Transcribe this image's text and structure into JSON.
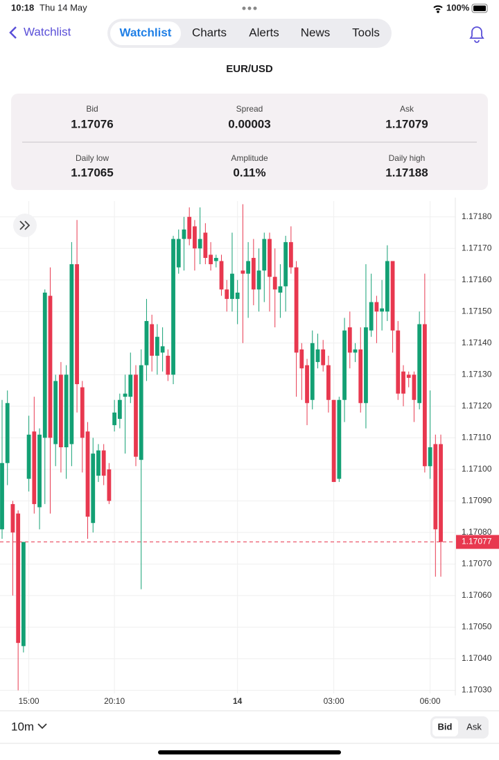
{
  "status_bar": {
    "time": "10:18",
    "date": "Thu 14 May",
    "battery": "100%"
  },
  "nav": {
    "back": "Watchlist",
    "tabs": [
      "Watchlist",
      "Charts",
      "Alerts",
      "News",
      "Tools"
    ]
  },
  "instrument": "EUR/USD",
  "stats": [
    {
      "label": "Bid",
      "value": "1.17076"
    },
    {
      "label": "Spread",
      "value": "0.00003"
    },
    {
      "label": "Ask",
      "value": "1.17079"
    },
    {
      "label": "Daily low",
      "value": "1.17065"
    },
    {
      "label": "Amplitude",
      "value": "0.11%"
    },
    {
      "label": "Daily high",
      "value": "1.17188"
    }
  ],
  "chart_data": {
    "type": "candlestick",
    "categories": [
      null,
      null,
      null,
      null,
      null,
      "15:00",
      null,
      null,
      null,
      null,
      null,
      null,
      null,
      null,
      null,
      null,
      null,
      null,
      null,
      null,
      null,
      "20:10",
      null,
      null,
      null,
      null,
      null,
      null,
      null,
      null,
      null,
      null,
      null,
      null,
      null,
      null,
      null,
      null,
      null,
      null,
      null,
      null,
      null,
      null,
      "14",
      null,
      null,
      null,
      null,
      null,
      null,
      null,
      null,
      null,
      null,
      null,
      null,
      null,
      null,
      null,
      null,
      null,
      "03:00",
      null,
      null,
      null,
      null,
      null,
      null,
      null,
      null,
      null,
      null,
      null,
      null,
      null,
      null,
      null,
      null,
      null,
      "06:00",
      null,
      null
    ],
    "open": [
      1.17081,
      1.17102,
      1.17089,
      1.17086,
      1.17044,
      1.17097,
      1.17112,
      1.17088,
      1.1711,
      1.17155,
      1.17108,
      1.1713,
      1.17107,
      1.17108,
      1.17165,
      1.17126,
      1.17112,
      1.17083,
      1.17098,
      1.17106,
      1.171,
      1.17114,
      1.17116,
      1.17123,
      1.17123,
      1.1713,
      1.17103,
      1.17133,
      1.17146,
      1.17136,
      1.17137,
      1.17136,
      1.1713,
      1.17164,
      1.17173,
      1.1718,
      1.17177,
      1.1717,
      1.17175,
      1.17168,
      1.17166,
      1.17166,
      1.17157,
      1.17154,
      1.17154,
      1.17163,
      1.17162,
      1.17167,
      1.17157,
      1.17163,
      1.17173,
      1.17161,
      1.17156,
      1.17158,
      1.17172,
      1.17164,
      1.17138,
      1.17133,
      1.17122,
      1.17134,
      1.17138,
      1.17133,
      1.17122,
      1.17097,
      1.17122,
      1.17145,
      1.17137,
      1.17138,
      1.17121,
      1.17144,
      1.17153,
      1.1715,
      1.1715,
      1.17166,
      1.17144,
      1.17131,
      1.1713,
      1.1713,
      1.17121,
      1.17146,
      1.17101,
      1.17108,
      1.17108
    ],
    "high": [
      1.17122,
      1.17125,
      1.1709,
      1.17087,
      1.17077,
      1.17117,
      1.17123,
      1.17113,
      1.17157,
      1.17164,
      1.1713,
      1.17134,
      1.17133,
      1.17172,
      1.17179,
      1.17128,
      1.17115,
      1.1711,
      1.17108,
      1.17108,
      1.17102,
      1.17122,
      1.17124,
      1.1713,
      1.17137,
      1.17133,
      1.17138,
      1.17154,
      1.17149,
      1.17146,
      1.17145,
      1.17138,
      1.17174,
      1.17176,
      1.1718,
      1.17183,
      1.17179,
      1.17183,
      1.17178,
      1.17172,
      1.17168,
      1.17168,
      1.1716,
      1.17175,
      1.1716,
      1.17184,
      1.17172,
      1.17173,
      1.1717,
      1.17175,
      1.17175,
      1.1717,
      1.17165,
      1.17174,
      1.17177,
      1.17166,
      1.1714,
      1.17135,
      1.17144,
      1.17143,
      1.17141,
      1.17136,
      1.17122,
      1.17123,
      1.17148,
      1.1715,
      1.1714,
      1.17145,
      1.17165,
      1.17162,
      1.17155,
      1.1716,
      1.17171,
      1.17166,
      1.17147,
      1.17133,
      1.17131,
      1.17131,
      1.1715,
      1.17162,
      1.17125,
      1.17111,
      1.17111
    ],
    "low": [
      1.17078,
      1.17095,
      1.1706,
      1.1703,
      1.17042,
      1.17093,
      1.17086,
      1.17081,
      1.17089,
      1.17086,
      1.17101,
      1.17099,
      1.17097,
      1.17101,
      1.17118,
      1.17099,
      1.17078,
      1.1708,
      1.17096,
      1.17095,
      1.17089,
      1.17112,
      1.17113,
      1.17105,
      1.17121,
      1.17101,
      1.17062,
      1.17128,
      1.17131,
      1.1713,
      1.17131,
      1.17128,
      1.17127,
      1.17162,
      1.17163,
      1.17171,
      1.17163,
      1.17165,
      1.17165,
      1.17163,
      1.17164,
      1.17155,
      1.1715,
      1.1715,
      1.17146,
      1.1714,
      1.17148,
      1.17152,
      1.1715,
      1.17153,
      1.1715,
      1.17145,
      1.17148,
      1.1715,
      1.17162,
      1.17123,
      1.17122,
      1.17114,
      1.17119,
      1.17132,
      1.17131,
      1.17118,
      1.17096,
      1.17096,
      1.17115,
      1.17132,
      1.17134,
      1.17118,
      1.17113,
      1.17142,
      1.1714,
      1.17144,
      1.17147,
      1.17137,
      1.17122,
      1.1712,
      1.17126,
      1.17115,
      1.17119,
      1.17099,
      1.17097,
      1.17066,
      1.17066
    ],
    "close": [
      1.17102,
      1.17121,
      1.1708,
      1.17045,
      1.17077,
      1.17111,
      1.17089,
      1.17111,
      1.17156,
      1.1711,
      1.17128,
      1.17107,
      1.1713,
      1.17165,
      1.17127,
      1.1711,
      1.17085,
      1.17105,
      1.17106,
      1.17098,
      1.1709,
      1.17118,
      1.17122,
      1.17124,
      1.1713,
      1.17104,
      1.17133,
      1.17147,
      1.17136,
      1.17142,
      1.17139,
      1.1713,
      1.17173,
      1.17173,
      1.17176,
      1.17173,
      1.1717,
      1.17173,
      1.17167,
      1.17165,
      1.17167,
      1.17157,
      1.17154,
      1.17162,
      1.17156,
      1.17162,
      1.17166,
      1.17157,
      1.17163,
      1.17173,
      1.17161,
      1.17157,
      1.17158,
      1.17172,
      1.17164,
      1.17137,
      1.17132,
      1.17121,
      1.1714,
      1.17138,
      1.17133,
      1.17122,
      1.17096,
      1.17122,
      1.17144,
      1.17137,
      1.17138,
      1.17121,
      1.17145,
      1.17153,
      1.1715,
      1.17151,
      1.17166,
      1.17144,
      1.17124,
      1.17124,
      1.17129,
      1.17122,
      1.17146,
      1.17101,
      1.17107,
      1.17081,
      1.17077
    ],
    "ylim": [
      1.17029,
      1.17185
    ],
    "yticks": [
      {
        "value": 1.1718,
        "label": "1.17180"
      },
      {
        "value": 1.1717,
        "label": "1.17170"
      },
      {
        "value": 1.1716,
        "label": "1.17160"
      },
      {
        "value": 1.1715,
        "label": "1.17150"
      },
      {
        "value": 1.1714,
        "label": "1.17140"
      },
      {
        "value": 1.1713,
        "label": "1.17130"
      },
      {
        "value": 1.1712,
        "label": "1.17120"
      },
      {
        "value": 1.1711,
        "label": "1.17110"
      },
      {
        "value": 1.171,
        "label": "1.17100"
      },
      {
        "value": 1.1709,
        "label": "1.17090"
      },
      {
        "value": 1.1708,
        "label": "1.17080"
      },
      {
        "value": 1.1707,
        "label": "1.17070"
      },
      {
        "value": 1.1706,
        "label": "1.17060"
      },
      {
        "value": 1.1705,
        "label": "1.17050"
      },
      {
        "value": 1.1704,
        "label": "1.17040"
      },
      {
        "value": 1.1703,
        "label": "1.17030"
      }
    ],
    "last_price": 1.17077,
    "up_color": "#13a074",
    "down_color": "#e8384f",
    "grid": true
  },
  "footer": {
    "interval": "10m",
    "price_types": [
      "Bid",
      "Ask"
    ]
  }
}
